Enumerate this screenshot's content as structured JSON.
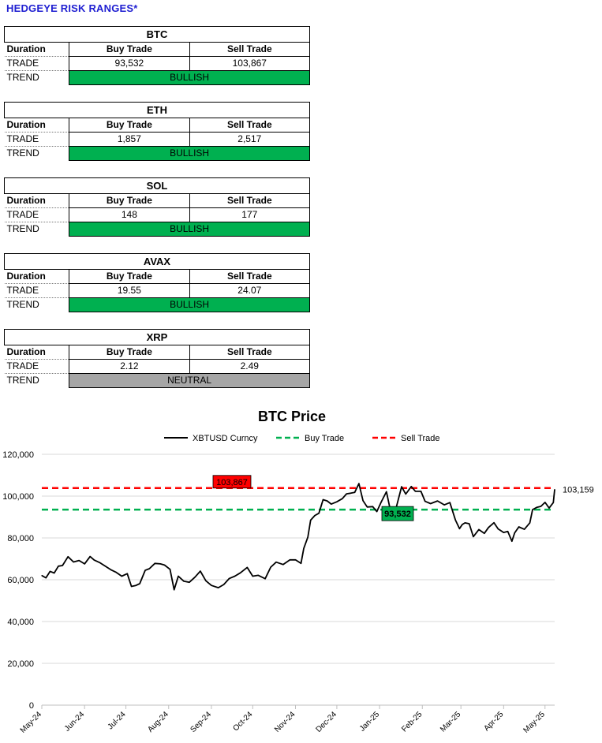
{
  "page": {
    "title": "HEDGEYE RISK RANGES*"
  },
  "colors": {
    "bullish": "#00b050",
    "neutral": "#a6a6a6",
    "buy_line": "#00b050",
    "sell_line": "#ff0000",
    "price_line": "#000000",
    "title_blue": "#1f1fd1"
  },
  "tables": [
    {
      "asset": "BTC",
      "duration_label": "Duration",
      "buy_label": "Buy Trade",
      "sell_label": "Sell Trade",
      "trade_label": "TRADE",
      "buy": "93,532",
      "sell": "103,867",
      "trend_label": "TREND",
      "trend": "BULLISH",
      "trend_color": "#00b050"
    },
    {
      "asset": "ETH",
      "duration_label": "Duration",
      "buy_label": "Buy Trade",
      "sell_label": "Sell Trade",
      "trade_label": "TRADE",
      "buy": "1,857",
      "sell": "2,517",
      "trend_label": "TREND",
      "trend": "BULLISH",
      "trend_color": "#00b050"
    },
    {
      "asset": "SOL",
      "duration_label": "Duration",
      "buy_label": "Buy Trade",
      "sell_label": "Sell Trade",
      "trade_label": "TRADE",
      "buy": "148",
      "sell": "177",
      "trend_label": "TREND",
      "trend": "BULLISH",
      "trend_color": "#00b050"
    },
    {
      "asset": "AVAX",
      "duration_label": "Duration",
      "buy_label": "Buy Trade",
      "sell_label": "Sell Trade",
      "trade_label": "TRADE",
      "buy": "19.55",
      "sell": "24.07",
      "trend_label": "TREND",
      "trend": "BULLISH",
      "trend_color": "#00b050"
    },
    {
      "asset": "XRP",
      "duration_label": "Duration",
      "buy_label": "Buy Trade",
      "sell_label": "Sell Trade",
      "trade_label": "TRADE",
      "buy": "2.12",
      "sell": "2.49",
      "trend_label": "TREND",
      "trend": "NEUTRAL",
      "trend_color": "#a6a6a6"
    }
  ],
  "chart_data": {
    "type": "line",
    "title": "BTC Price",
    "xlabel": "",
    "ylabel": "",
    "ylim": [
      0,
      120000
    ],
    "yticks": [
      0,
      20000,
      40000,
      60000,
      80000,
      100000,
      120000
    ],
    "ytick_labels": [
      "0",
      "20,000",
      "40,000",
      "60,000",
      "80,000",
      "100,000",
      "120,000"
    ],
    "x_start": "2024-05-01",
    "x_end": "2025-05-08",
    "xticks": [
      "2024-05-01",
      "2024-06-01",
      "2024-07-01",
      "2024-08-01",
      "2024-09-01",
      "2024-10-01",
      "2024-11-01",
      "2024-12-01",
      "2025-01-01",
      "2025-02-01",
      "2025-03-01",
      "2025-04-01",
      "2025-05-01"
    ],
    "xtick_labels": [
      "May-24",
      "Jun-24",
      "Jul-24",
      "Aug-24",
      "Sep-24",
      "Oct-24",
      "Nov-24",
      "Dec-24",
      "Jan-25",
      "Feb-25",
      "Mar-25",
      "Apr-25",
      "May-25"
    ],
    "legend": [
      "XBTUSD Curncy",
      "Buy Trade",
      "Sell Trade"
    ],
    "legend_position": "top",
    "grid": true,
    "series": [
      {
        "name": "XBTUSD Curncy",
        "x": [
          "2024-05-01",
          "2024-05-04",
          "2024-05-07",
          "2024-05-10",
          "2024-05-13",
          "2024-05-16",
          "2024-05-20",
          "2024-05-24",
          "2024-05-28",
          "2024-06-01",
          "2024-06-05",
          "2024-06-08",
          "2024-06-12",
          "2024-06-16",
          "2024-06-20",
          "2024-06-24",
          "2024-06-28",
          "2024-07-02",
          "2024-07-05",
          "2024-07-08",
          "2024-07-11",
          "2024-07-15",
          "2024-07-18",
          "2024-07-22",
          "2024-07-26",
          "2024-07-29",
          "2024-08-02",
          "2024-08-05",
          "2024-08-08",
          "2024-08-12",
          "2024-08-16",
          "2024-08-20",
          "2024-08-24",
          "2024-08-28",
          "2024-09-01",
          "2024-09-06",
          "2024-09-10",
          "2024-09-14",
          "2024-09-18",
          "2024-09-22",
          "2024-09-27",
          "2024-10-01",
          "2024-10-05",
          "2024-10-10",
          "2024-10-14",
          "2024-10-18",
          "2024-10-23",
          "2024-10-28",
          "2024-11-01",
          "2024-11-05",
          "2024-11-07",
          "2024-11-10",
          "2024-11-12",
          "2024-11-15",
          "2024-11-18",
          "2024-11-21",
          "2024-11-24",
          "2024-11-27",
          "2024-12-01",
          "2024-12-05",
          "2024-12-08",
          "2024-12-11",
          "2024-12-14",
          "2024-12-17",
          "2024-12-20",
          "2024-12-23",
          "2024-12-27",
          "2024-12-30",
          "2025-01-02",
          "2025-01-06",
          "2025-01-09",
          "2025-01-13",
          "2025-01-17",
          "2025-01-20",
          "2025-01-24",
          "2025-01-27",
          "2025-01-31",
          "2025-02-03",
          "2025-02-07",
          "2025-02-12",
          "2025-02-17",
          "2025-02-21",
          "2025-02-25",
          "2025-02-28",
          "2025-03-02",
          "2025-03-04",
          "2025-03-07",
          "2025-03-10",
          "2025-03-14",
          "2025-03-18",
          "2025-03-21",
          "2025-03-25",
          "2025-03-28",
          "2025-04-01",
          "2025-04-04",
          "2025-04-07",
          "2025-04-09",
          "2025-04-12",
          "2025-04-16",
          "2025-04-20",
          "2025-04-22",
          "2025-04-25",
          "2025-04-28",
          "2025-05-01",
          "2025-05-04",
          "2025-05-07",
          "2025-05-08"
        ],
        "y": [
          62000,
          60900,
          64000,
          63200,
          66500,
          66800,
          71000,
          68500,
          69200,
          67600,
          71100,
          69400,
          68200,
          66500,
          64800,
          63500,
          61700,
          62900,
          56800,
          57200,
          58100,
          64500,
          65300,
          67800,
          67600,
          67000,
          65000,
          55200,
          61700,
          59300,
          58800,
          61200,
          64100,
          59500,
          57300,
          56200,
          57700,
          60600,
          61700,
          63300,
          65900,
          61700,
          62100,
          60500,
          66000,
          68400,
          67300,
          69500,
          69500,
          67800,
          75000,
          80400,
          88500,
          90700,
          91800,
          98300,
          97700,
          96200,
          97300,
          98800,
          101100,
          101400,
          101800,
          106000,
          97800,
          94800,
          95000,
          92600,
          96900,
          102100,
          92600,
          94400,
          104500,
          101000,
          104600,
          102300,
          102300,
          97500,
          96400,
          97700,
          95800,
          96900,
          88600,
          84400,
          86400,
          87200,
          86800,
          80600,
          84000,
          82200,
          85000,
          87300,
          84300,
          82600,
          83100,
          78400,
          82400,
          85300,
          84100,
          87200,
          93500,
          94600,
          95100,
          97000,
          94300,
          96900,
          103159
        ]
      },
      {
        "name": "Buy Trade",
        "value": 93532
      },
      {
        "name": "Sell Trade",
        "value": 103867
      }
    ],
    "annotations": {
      "buy_label": "93,532",
      "sell_label": "103,867",
      "last_value_label": "103,159"
    }
  }
}
